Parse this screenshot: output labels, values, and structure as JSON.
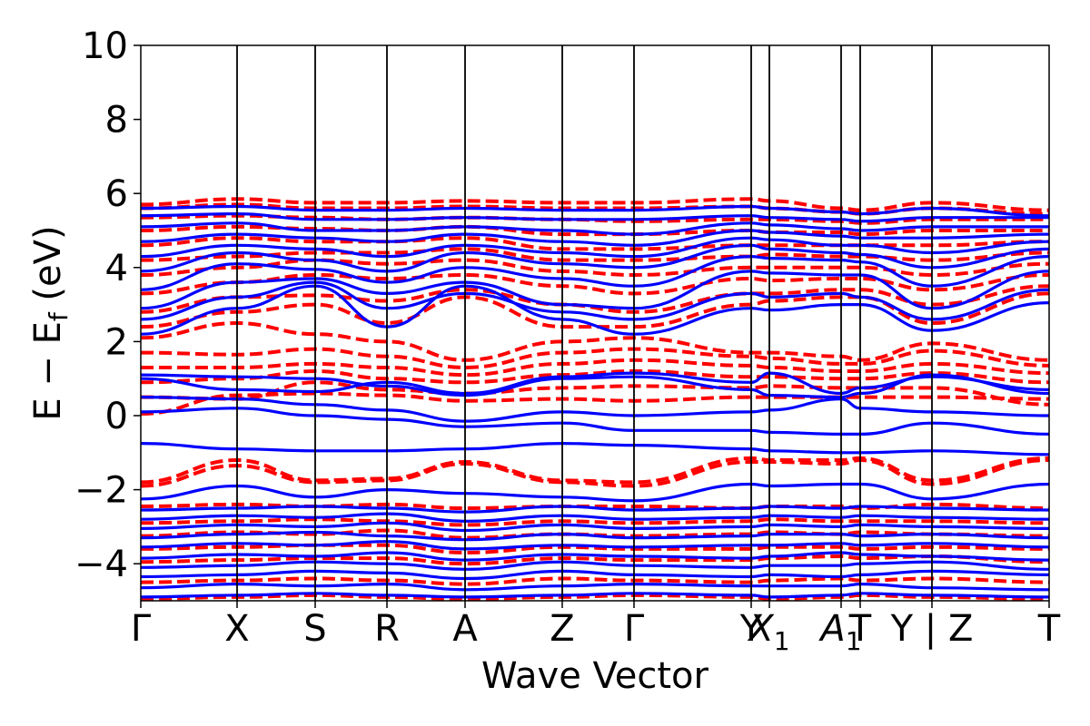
{
  "chart_data": {
    "type": "line",
    "xlabel": "Wave Vector",
    "ylabel": "E − E",
    "ylabel_subscript": "f",
    "ylabel_unit": "(eV)",
    "ylim": [
      -5,
      10
    ],
    "yticks": [
      {
        "value": -4,
        "label": "−4"
      },
      {
        "value": -2,
        "label": "−2"
      },
      {
        "value": 0,
        "label": "0"
      },
      {
        "value": 2,
        "label": "2"
      },
      {
        "value": 4,
        "label": "4"
      },
      {
        "value": 6,
        "label": "6"
      },
      {
        "value": 8,
        "label": "8"
      },
      {
        "value": 10,
        "label": "10"
      }
    ],
    "kpath_breaks": [
      0,
      1.06,
      1.92,
      2.71,
      3.57,
      4.64,
      5.43,
      6.72,
      6.92,
      7.71,
      7.92,
      8.71,
      10.0
    ],
    "kpath_labels": [
      {
        "k": 0,
        "label": "Γ"
      },
      {
        "k": 1.06,
        "label": "X"
      },
      {
        "k": 1.92,
        "label": "S"
      },
      {
        "k": 2.71,
        "label": "R"
      },
      {
        "k": 3.57,
        "label": "A"
      },
      {
        "k": 4.64,
        "label": "Z"
      },
      {
        "k": 5.43,
        "label": "Γ"
      },
      {
        "k": 6.72,
        "label": "Y"
      },
      {
        "k": 6.92,
        "label": "X",
        "sub": "1"
      },
      {
        "k": 7.71,
        "label": "A",
        "sub": "1"
      },
      {
        "k": 7.92,
        "label": "T"
      },
      {
        "k": 8.71,
        "label": "Y | Z"
      },
      {
        "k": 10.0,
        "label": "T"
      }
    ],
    "grid": false,
    "legend": "none",
    "series": [
      {
        "style": "solid",
        "color": "#0000ff",
        "bands": [
          [
            -4.9,
            -4.85,
            -4.8,
            -4.85,
            -4.9,
            -4.85,
            -4.8,
            -4.85,
            -4.9,
            -4.85,
            -4.8,
            -4.85,
            -4.9
          ],
          [
            -4.65,
            -4.55,
            -4.6,
            -4.55,
            -4.7,
            -4.6,
            -4.55,
            -4.6,
            -4.6,
            -4.6,
            -4.55,
            -4.65,
            -4.7
          ],
          [
            -4.35,
            -4.3,
            -4.2,
            -4.25,
            -4.4,
            -4.2,
            -4.3,
            -4.35,
            -4.3,
            -4.35,
            -4.3,
            -4.2,
            -4.3
          ],
          [
            -4.1,
            -4.05,
            -3.95,
            -4.0,
            -4.15,
            -3.95,
            -4.05,
            -4.1,
            -4.05,
            -4.05,
            -4.0,
            -3.95,
            -4.15
          ],
          [
            -3.85,
            -3.75,
            -3.8,
            -3.7,
            -3.9,
            -3.75,
            -3.8,
            -3.85,
            -3.8,
            -3.7,
            -3.75,
            -3.8,
            -3.9
          ],
          [
            -3.55,
            -3.45,
            -3.5,
            -3.4,
            -3.6,
            -3.5,
            -3.55,
            -3.5,
            -3.5,
            -3.45,
            -3.5,
            -3.45,
            -3.55
          ],
          [
            -3.3,
            -3.2,
            -3.15,
            -3.25,
            -3.35,
            -3.2,
            -3.3,
            -3.25,
            -3.2,
            -3.2,
            -3.25,
            -3.2,
            -3.3
          ],
          [
            -3.05,
            -2.95,
            -3.0,
            -2.9,
            -3.1,
            -2.95,
            -3.05,
            -3.0,
            -2.95,
            -3.0,
            -2.95,
            -3.0,
            -3.05
          ],
          [
            -2.8,
            -2.7,
            -2.75,
            -2.65,
            -2.85,
            -2.7,
            -2.8,
            -2.75,
            -2.7,
            -2.75,
            -2.7,
            -2.75,
            -2.8
          ],
          [
            -2.55,
            -2.5,
            -2.45,
            -2.5,
            -2.6,
            -2.45,
            -2.55,
            -2.5,
            -2.45,
            -2.5,
            -2.45,
            -2.5,
            -2.55
          ],
          [
            -2.25,
            -1.9,
            -2.2,
            -2.0,
            -2.1,
            -2.2,
            -2.3,
            -1.85,
            -1.9,
            -1.85,
            -1.85,
            -2.25,
            -1.85
          ],
          [
            -0.75,
            -0.9,
            -0.95,
            -0.95,
            -0.9,
            -0.75,
            -0.8,
            -0.9,
            -0.95,
            -1.0,
            -1.0,
            -0.95,
            -1.05
          ],
          [
            0.1,
            0.2,
            0.0,
            -0.1,
            -0.3,
            -0.2,
            -0.4,
            -0.4,
            -0.45,
            -0.5,
            -0.5,
            -0.2,
            -0.5
          ],
          [
            0.5,
            0.45,
            0.3,
            0.15,
            -0.15,
            0.1,
            0.0,
            0.1,
            0.15,
            0.45,
            0.2,
            0.1,
            0.0
          ],
          [
            1.1,
            1.05,
            1.0,
            0.8,
            0.55,
            1.0,
            1.05,
            0.7,
            0.55,
            0.5,
            0.6,
            1.1,
            0.6
          ],
          [
            1.0,
            0.7,
            0.65,
            0.9,
            0.6,
            1.05,
            1.15,
            0.9,
            1.15,
            0.6,
            0.75,
            1.05,
            0.7
          ],
          [
            2.2,
            2.9,
            3.5,
            2.4,
            3.5,
            2.6,
            2.2,
            2.9,
            2.85,
            3.0,
            3.0,
            2.3,
            3.05
          ],
          [
            2.6,
            3.2,
            3.6,
            2.9,
            3.3,
            2.8,
            2.6,
            3.3,
            3.2,
            3.3,
            3.2,
            2.6,
            3.4
          ],
          [
            2.9,
            3.6,
            3.7,
            3.3,
            3.6,
            3.0,
            2.9,
            3.9,
            3.85,
            3.8,
            3.8,
            2.9,
            3.9
          ],
          [
            3.4,
            4.1,
            3.95,
            3.6,
            4.0,
            3.7,
            3.5,
            4.3,
            4.25,
            4.2,
            4.15,
            3.5,
            4.3
          ],
          [
            3.9,
            4.4,
            4.2,
            3.9,
            4.4,
            4.1,
            4.0,
            4.6,
            4.5,
            4.4,
            4.35,
            4.0,
            4.5
          ],
          [
            4.3,
            4.6,
            4.5,
            4.3,
            4.6,
            4.4,
            4.3,
            4.8,
            4.75,
            4.6,
            4.6,
            4.4,
            4.7
          ],
          [
            4.7,
            4.9,
            4.8,
            4.7,
            4.9,
            4.7,
            4.6,
            5.0,
            4.95,
            4.85,
            4.8,
            4.8,
            4.9
          ],
          [
            5.1,
            5.2,
            5.0,
            5.0,
            5.1,
            5.0,
            4.9,
            5.2,
            5.15,
            5.05,
            5.0,
            5.1,
            5.1
          ],
          [
            5.4,
            5.45,
            5.3,
            5.3,
            5.35,
            5.3,
            5.3,
            5.4,
            5.35,
            5.3,
            5.25,
            5.35,
            5.35
          ],
          [
            5.6,
            5.65,
            5.55,
            5.55,
            5.6,
            5.55,
            5.55,
            5.65,
            5.6,
            5.5,
            5.45,
            5.6,
            5.4
          ]
        ]
      },
      {
        "style": "dashed",
        "color": "#ff0000",
        "bands": [
          [
            -4.95,
            -4.9,
            -4.85,
            -4.9,
            -4.95,
            -4.9,
            -4.85,
            -4.9,
            -4.95,
            -4.9,
            -4.85,
            -4.9,
            -4.95
          ],
          [
            -4.5,
            -4.45,
            -4.4,
            -4.45,
            -4.55,
            -4.4,
            -4.45,
            -4.5,
            -4.45,
            -4.4,
            -4.45,
            -4.4,
            -4.5
          ],
          [
            -3.95,
            -3.9,
            -3.85,
            -3.85,
            -4.0,
            -3.85,
            -3.9,
            -3.9,
            -3.85,
            -3.8,
            -3.85,
            -3.8,
            -3.95
          ],
          [
            -3.6,
            -3.55,
            -3.5,
            -3.5,
            -3.7,
            -3.55,
            -3.6,
            -3.6,
            -3.55,
            -3.55,
            -3.6,
            -3.55,
            -3.6
          ],
          [
            -3.25,
            -3.15,
            -3.2,
            -3.1,
            -3.3,
            -3.2,
            -3.25,
            -3.2,
            -3.15,
            -3.2,
            -3.15,
            -3.2,
            -3.25
          ],
          [
            -2.9,
            -2.85,
            -2.8,
            -2.85,
            -2.95,
            -2.85,
            -2.9,
            -2.85,
            -2.8,
            -2.85,
            -2.85,
            -2.85,
            -2.9
          ],
          [
            -2.45,
            -2.4,
            -2.45,
            -2.4,
            -2.5,
            -2.45,
            -2.45,
            -2.5,
            -2.45,
            -2.45,
            -2.5,
            -2.4,
            -2.5
          ],
          [
            -1.8,
            -1.2,
            -1.75,
            -1.7,
            -1.25,
            -1.75,
            -1.8,
            -1.15,
            -1.2,
            -1.2,
            -1.15,
            -1.75,
            -1.15
          ],
          [
            -1.9,
            -1.35,
            -1.8,
            -1.75,
            -1.3,
            -1.8,
            -1.9,
            -1.25,
            -1.25,
            -1.3,
            -1.2,
            -1.85,
            -1.2
          ],
          [
            0.05,
            0.55,
            0.6,
            0.55,
            0.4,
            0.45,
            0.4,
            0.5,
            0.5,
            0.5,
            0.5,
            0.5,
            0.45
          ],
          [
            0.5,
            0.45,
            0.9,
            0.7,
            0.6,
            0.75,
            0.8,
            0.75,
            0.8,
            0.75,
            0.75,
            0.75,
            0.3
          ],
          [
            0.9,
            1.0,
            1.2,
            1.0,
            0.9,
            1.1,
            1.2,
            1.05,
            1.05,
            1.0,
            1.0,
            1.15,
            0.9
          ],
          [
            1.3,
            1.3,
            1.4,
            1.3,
            1.1,
            1.4,
            1.5,
            1.35,
            1.3,
            1.2,
            1.2,
            1.4,
            1.15
          ],
          [
            1.7,
            1.65,
            1.8,
            1.6,
            1.3,
            1.7,
            1.8,
            1.6,
            1.55,
            1.4,
            1.4,
            1.75,
            1.35
          ],
          [
            2.1,
            2.5,
            2.2,
            2.0,
            1.5,
            2.0,
            2.1,
            1.7,
            1.7,
            1.6,
            1.5,
            1.95,
            1.5
          ],
          [
            2.4,
            2.8,
            3.0,
            2.5,
            3.2,
            2.4,
            2.4,
            3.0,
            3.1,
            3.2,
            3.2,
            2.5,
            3.3
          ],
          [
            2.8,
            3.2,
            3.25,
            3.1,
            3.4,
            3.0,
            2.8,
            3.3,
            3.3,
            3.4,
            3.4,
            3.0,
            3.5
          ],
          [
            3.3,
            3.6,
            3.8,
            3.7,
            3.8,
            3.5,
            3.3,
            3.7,
            3.65,
            3.7,
            3.7,
            3.4,
            3.8
          ],
          [
            3.8,
            4.0,
            4.2,
            4.1,
            4.2,
            3.9,
            3.8,
            4.0,
            4.0,
            4.0,
            4.0,
            3.8,
            4.1
          ],
          [
            4.2,
            4.3,
            4.4,
            4.4,
            4.5,
            4.2,
            4.2,
            4.3,
            4.35,
            4.3,
            4.3,
            4.2,
            4.4
          ],
          [
            4.6,
            4.8,
            4.7,
            4.7,
            4.8,
            4.5,
            4.5,
            4.6,
            4.6,
            4.6,
            4.6,
            4.6,
            4.7
          ],
          [
            5.0,
            5.1,
            5.05,
            5.0,
            5.1,
            4.9,
            4.9,
            5.0,
            4.95,
            4.95,
            4.9,
            5.0,
            5.0
          ],
          [
            5.35,
            5.4,
            5.35,
            5.3,
            5.35,
            5.3,
            5.25,
            5.3,
            5.3,
            5.25,
            5.2,
            5.3,
            5.3
          ],
          [
            5.6,
            5.7,
            5.6,
            5.6,
            5.65,
            5.6,
            5.6,
            5.65,
            5.6,
            5.5,
            5.45,
            5.6,
            5.45
          ],
          [
            5.7,
            5.85,
            5.75,
            5.75,
            5.8,
            5.75,
            5.75,
            5.85,
            5.8,
            5.6,
            5.55,
            5.75,
            5.55
          ]
        ]
      }
    ]
  }
}
